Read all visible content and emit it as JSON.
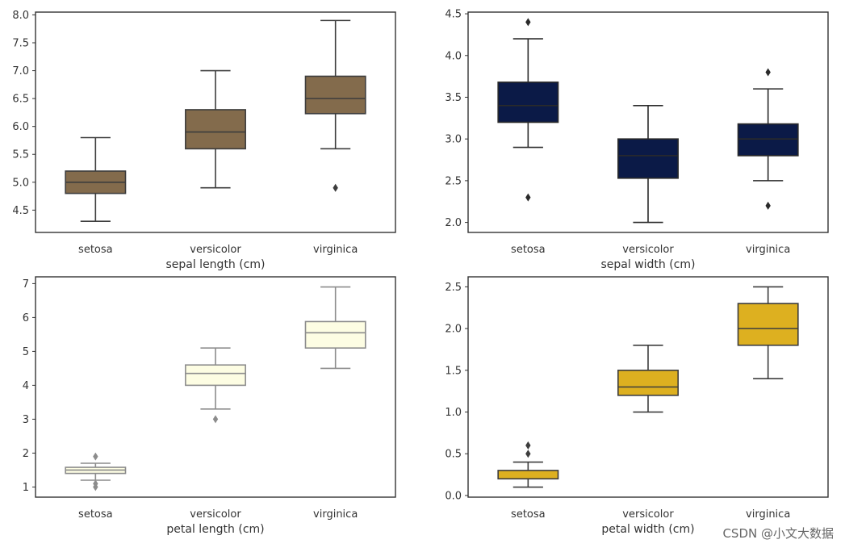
{
  "chart_data": [
    {
      "type": "box",
      "categories": [
        "setosa",
        "versicolor",
        "virginica"
      ],
      "xlabel": "sepal length (cm)",
      "ylabel": "",
      "ylim": [
        4.1,
        8.05
      ],
      "yticks": [
        4.5,
        5.0,
        5.5,
        6.0,
        6.5,
        7.0,
        7.5,
        8.0
      ],
      "ytick_labels": [
        "4.5",
        "5.0",
        "5.5",
        "6.0",
        "6.5",
        "7.0",
        "7.5",
        "8.0"
      ],
      "box_color": "#836b4c",
      "line_color": "#3d3d3d",
      "boxes": [
        {
          "whisker_low": 4.3,
          "q1": 4.8,
          "median": 5.0,
          "q3": 5.2,
          "whisker_high": 5.8,
          "outliers": []
        },
        {
          "whisker_low": 4.9,
          "q1": 5.6,
          "median": 5.9,
          "q3": 6.3,
          "whisker_high": 7.0,
          "outliers": []
        },
        {
          "whisker_low": 5.6,
          "q1": 6.23,
          "median": 6.5,
          "q3": 6.9,
          "whisker_high": 7.9,
          "outliers": [
            4.9
          ]
        }
      ]
    },
    {
      "type": "box",
      "categories": [
        "setosa",
        "versicolor",
        "virginica"
      ],
      "xlabel": "sepal width (cm)",
      "ylabel": "",
      "ylim": [
        1.88,
        4.52
      ],
      "yticks": [
        2.0,
        2.5,
        3.0,
        3.5,
        4.0,
        4.5
      ],
      "ytick_labels": [
        "2.0",
        "2.5",
        "3.0",
        "3.5",
        "4.0",
        "4.5"
      ],
      "box_color": "#0b1a47",
      "line_color": "#2a2a2a",
      "boxes": [
        {
          "whisker_low": 2.9,
          "q1": 3.2,
          "median": 3.4,
          "q3": 3.68,
          "whisker_high": 4.2,
          "outliers": [
            2.3,
            4.4
          ]
        },
        {
          "whisker_low": 2.0,
          "q1": 2.53,
          "median": 2.8,
          "q3": 3.0,
          "whisker_high": 3.4,
          "outliers": []
        },
        {
          "whisker_low": 2.5,
          "q1": 2.8,
          "median": 3.0,
          "q3": 3.18,
          "whisker_high": 3.6,
          "outliers": [
            2.2,
            3.8
          ]
        }
      ]
    },
    {
      "type": "box",
      "categories": [
        "setosa",
        "versicolor",
        "virginica"
      ],
      "xlabel": "petal length (cm)",
      "ylabel": "",
      "ylim": [
        0.7,
        7.2
      ],
      "yticks": [
        1,
        2,
        3,
        4,
        5,
        6,
        7
      ],
      "ytick_labels": [
        "1",
        "2",
        "3",
        "4",
        "5",
        "6",
        "7"
      ],
      "box_color": "#fdfde3",
      "line_color": "#8c8c8c",
      "boxes": [
        {
          "whisker_low": 1.2,
          "q1": 1.4,
          "median": 1.5,
          "q3": 1.58,
          "whisker_high": 1.7,
          "outliers": [
            1.0,
            1.1,
            1.9
          ]
        },
        {
          "whisker_low": 3.3,
          "q1": 4.0,
          "median": 4.35,
          "q3": 4.6,
          "whisker_high": 5.1,
          "outliers": [
            3.0
          ]
        },
        {
          "whisker_low": 4.5,
          "q1": 5.1,
          "median": 5.55,
          "q3": 5.88,
          "whisker_high": 6.9,
          "outliers": []
        }
      ]
    },
    {
      "type": "box",
      "categories": [
        "setosa",
        "versicolor",
        "virginica"
      ],
      "xlabel": "petal width (cm)",
      "ylabel": "",
      "ylim": [
        -0.02,
        2.62
      ],
      "yticks": [
        0.0,
        0.5,
        1.0,
        1.5,
        2.0,
        2.5
      ],
      "ytick_labels": [
        "0.0",
        "0.5",
        "1.0",
        "1.5",
        "2.0",
        "2.5"
      ],
      "box_color": "#ddb020",
      "line_color": "#3d3d3d",
      "boxes": [
        {
          "whisker_low": 0.1,
          "q1": 0.2,
          "median": 0.2,
          "q3": 0.3,
          "whisker_high": 0.4,
          "outliers": [
            0.5,
            0.6
          ]
        },
        {
          "whisker_low": 1.0,
          "q1": 1.2,
          "median": 1.3,
          "q3": 1.5,
          "whisker_high": 1.8,
          "outliers": []
        },
        {
          "whisker_low": 1.4,
          "q1": 1.8,
          "median": 2.0,
          "q3": 2.3,
          "whisker_high": 2.5,
          "outliers": []
        }
      ]
    }
  ],
  "watermark": "CSDN @小文大数据"
}
